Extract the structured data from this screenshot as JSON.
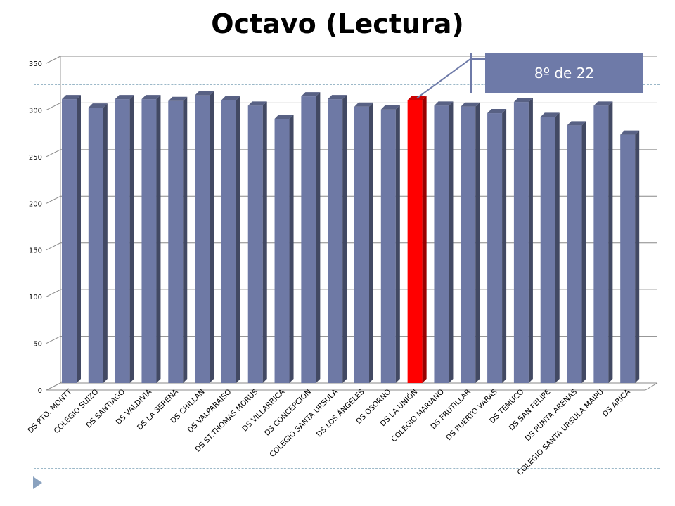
{
  "chart_data": {
    "type": "bar",
    "title": "Octavo (Lectura)",
    "categories": [
      "DS PTO. MONTT",
      "COLEGIO SUIZO",
      "DS SANTIAGO",
      "DS VALDIVIA",
      "DS LA SERENA",
      "DS CHILLÁN",
      "DS VALPARAISO",
      "DS ST.THOMAS MORUS",
      "DS VILLARRICA",
      "DS CONCEPCION",
      "COLEGIO SANTA URSULA",
      "DS LOS ÁNGELES",
      "DS OSORNO",
      "DS LA UNIÓN",
      "COLEGIO MARIANO",
      "DS FRUTILLAR",
      "DS PUERTO VARAS",
      "DS TEMUCO",
      "DS SAN FELIPE",
      "DS PUNTA ARENAS",
      "COLEGIO SANTA URSULA MAIPU",
      "DS ARICA"
    ],
    "values": [
      304,
      295,
      304,
      304,
      302,
      308,
      303,
      297,
      283,
      307,
      304,
      296,
      293,
      303,
      297,
      296,
      289,
      301,
      285,
      276,
      297,
      266
    ],
    "highlight_index": 13,
    "colors": {
      "bar": "#6e79a5",
      "highlight": "#ff0000"
    },
    "ylim": [
      0,
      350
    ],
    "yticks": [
      0,
      50,
      100,
      150,
      200,
      250,
      300,
      350
    ],
    "xlabel": "",
    "ylabel": "",
    "grid": true
  },
  "callout": {
    "text": "8º de 22"
  }
}
